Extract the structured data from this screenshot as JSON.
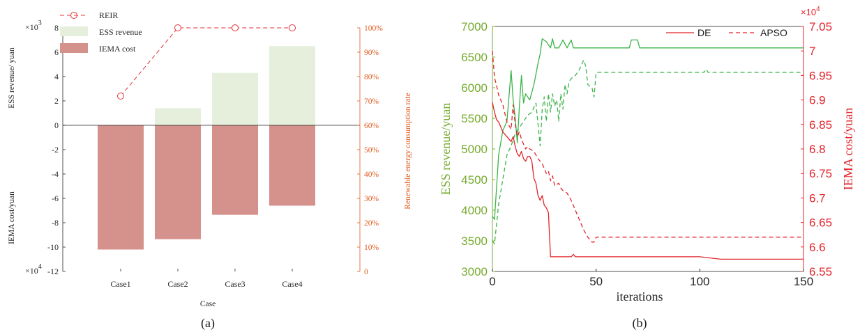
{
  "colors": {
    "axis": "#262626",
    "orange": "#e05a1e",
    "green_fill": "#e6efdb",
    "red_fill": "#d5928d",
    "reir": "#e3303a",
    "green_line": "#3cb44b",
    "green_axis": "#77ac30",
    "red_line": "#e3242b"
  },
  "panel_labels": {
    "a": "(a)",
    "b": "(b)"
  },
  "chart_data": [
    {
      "id": "a",
      "type": "bar",
      "categories": [
        "Case1",
        "Case2",
        "Case3",
        "Case4"
      ],
      "series": [
        {
          "name": "ESS revenue",
          "values": [
            0,
            1400,
            4300,
            6500
          ]
        },
        {
          "name": "IEMA cost",
          "values": [
            -102000,
            -93500,
            -73500,
            -66000
          ]
        },
        {
          "name": "REIR",
          "type": "line",
          "values": [
            72,
            100,
            100,
            100
          ]
        }
      ],
      "legend_position": "top-left",
      "xlabel": "Case",
      "ylabel_top": "ESS revenue/ yuan",
      "ylabel_bottom": "IEMA cost/yuan",
      "ylabel_right": "Renewable energy consumption rate",
      "yticks_left": [
        "8",
        "6",
        "4",
        "2",
        "0",
        "-2",
        "-4",
        "-6",
        "-8",
        "-10",
        "-12"
      ],
      "exp_top": "3",
      "exp_bottom": "4",
      "exp_base": "×10",
      "yticks_right": [
        "100%",
        "90%",
        "80%",
        "70%",
        "60%",
        "50%",
        "40%",
        "30%",
        "20%",
        "10%",
        "0"
      ],
      "ylim_left_ticks": [
        -12,
        8
      ],
      "ylim_right": [
        0,
        100
      ]
    },
    {
      "id": "b",
      "type": "line",
      "xlabel": "iterations",
      "ylabel_left": "ESS revenue/yuan",
      "ylabel_right": "IEMA cost/yuan",
      "xticks": [
        "0",
        "50",
        "100",
        "150"
      ],
      "yticks_left": [
        "7000",
        "6500",
        "6000",
        "5500",
        "5000",
        "4500",
        "4000",
        "3500",
        "3000"
      ],
      "yticks_right": [
        "7.05",
        "7",
        "6.95",
        "6.9",
        "6.85",
        "6.8",
        "6.75",
        "6.7",
        "6.65",
        "6.6",
        "6.55"
      ],
      "exponent_right": "×10",
      "exponent_power": "4",
      "xlim": [
        0,
        150
      ],
      "ylim_left": [
        3000,
        7000
      ],
      "ylim_right": [
        65500,
        70500
      ],
      "legend": [
        {
          "name": "DE",
          "style": "solid"
        },
        {
          "name": "APSO",
          "style": "dashed"
        }
      ],
      "legend_position": "top-right",
      "series": [
        {
          "name": "DE",
          "axis": "left",
          "style": "solid",
          "x": [
            0,
            1,
            3,
            5,
            7,
            9,
            10,
            11,
            12,
            13,
            14,
            15,
            16,
            17,
            18,
            20,
            22,
            23,
            24,
            26,
            28,
            29,
            30,
            32,
            34,
            36,
            38,
            39,
            40,
            60,
            66,
            67,
            70,
            71,
            150
          ],
          "y": [
            3900,
            3850,
            4900,
            5300,
            5450,
            6280,
            5800,
            5500,
            5100,
            5700,
            6200,
            5750,
            5900,
            5850,
            5800,
            6050,
            6400,
            6550,
            6800,
            6750,
            6650,
            6800,
            6650,
            6650,
            6780,
            6650,
            6780,
            6650,
            6650,
            6650,
            6650,
            6780,
            6780,
            6650,
            6650
          ]
        },
        {
          "name": "APSO",
          "axis": "left",
          "style": "dashed",
          "x": [
            0,
            1,
            3,
            5,
            7,
            9,
            11,
            13,
            15,
            17,
            19,
            21,
            23,
            24,
            25,
            26,
            27,
            28,
            29,
            30,
            31,
            32,
            33,
            34,
            35,
            36,
            37,
            38,
            40,
            42,
            44,
            45,
            46,
            48,
            49,
            50,
            100,
            102,
            103,
            104,
            150
          ],
          "y": [
            3500,
            3450,
            4100,
            4500,
            4900,
            5050,
            5250,
            5350,
            5450,
            5550,
            5600,
            5750,
            5050,
            5650,
            5850,
            5450,
            5900,
            5600,
            5900,
            5700,
            5800,
            5450,
            5900,
            5650,
            6050,
            5900,
            6100,
            6150,
            6200,
            6300,
            6450,
            6350,
            6050,
            6000,
            5850,
            6250,
            6250,
            6250,
            6300,
            6250,
            6250
          ]
        },
        {
          "name": "DE",
          "axis": "right",
          "style": "solid",
          "x": [
            0,
            1,
            2,
            3,
            4,
            5,
            6,
            7,
            8,
            9,
            10,
            11,
            12,
            13,
            14,
            15,
            16,
            17,
            18,
            19,
            20,
            21,
            22,
            23,
            24,
            25,
            26,
            27,
            28,
            38,
            39,
            40,
            66,
            70,
            85,
            100,
            110,
            115,
            150
          ],
          "y": [
            68950,
            68750,
            68600,
            68550,
            68450,
            68350,
            68300,
            68250,
            68200,
            68150,
            68250,
            68050,
            67900,
            67850,
            67950,
            67800,
            67750,
            67850,
            67850,
            67750,
            67400,
            67300,
            67050,
            66950,
            67050,
            66850,
            66800,
            66700,
            65800,
            65800,
            65850,
            65800,
            65800,
            65800,
            65800,
            65800,
            65750,
            65750,
            65750
          ]
        },
        {
          "name": "APSO",
          "axis": "right",
          "style": "dashed",
          "x": [
            0,
            1,
            2,
            3,
            4,
            5,
            7,
            9,
            10,
            11,
            12,
            13,
            14,
            15,
            16,
            17,
            18,
            20,
            22,
            24,
            26,
            27,
            28,
            29,
            30,
            32,
            33,
            34,
            36,
            38,
            40,
            42,
            44,
            46,
            48,
            49,
            50,
            150
          ],
          "y": [
            70000,
            69450,
            69300,
            69100,
            69000,
            68900,
            68550,
            68400,
            68900,
            68500,
            68250,
            68350,
            68200,
            68100,
            68000,
            68050,
            68000,
            67950,
            67800,
            67700,
            67500,
            67550,
            67350,
            67450,
            67250,
            67300,
            67200,
            67150,
            67100,
            66950,
            66750,
            66550,
            66350,
            66200,
            66100,
            66100,
            66200,
            66200
          ]
        }
      ]
    }
  ]
}
